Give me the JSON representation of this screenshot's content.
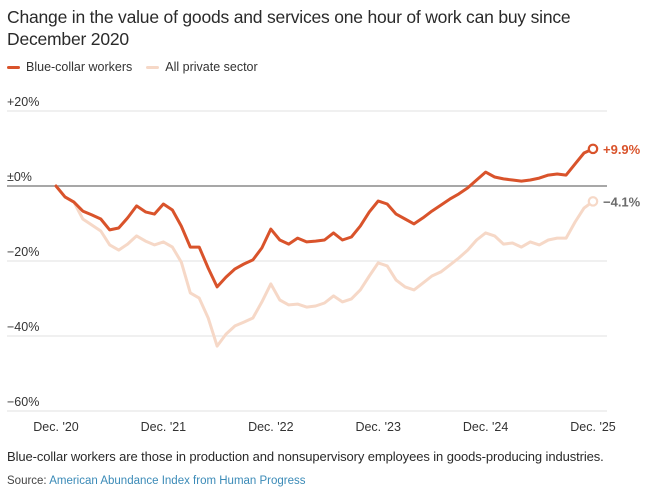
{
  "chart_data": {
    "type": "line",
    "title": "Change in the value of goods and services one hour of work can buy since December 2020",
    "xlabel": "",
    "ylabel": "",
    "ylim": [
      -60,
      20
    ],
    "y_ticks": [
      {
        "value": 20,
        "label": "+20%"
      },
      {
        "value": 0,
        "label": "±0%"
      },
      {
        "value": -20,
        "label": "−20%"
      },
      {
        "value": -40,
        "label": "−40%"
      },
      {
        "value": -60,
        "label": "−60%"
      }
    ],
    "x_range_months": [
      0,
      60
    ],
    "x_ticks": [
      {
        "month": 0,
        "label": "Dec. '20"
      },
      {
        "month": 12,
        "label": "Dec. '21"
      },
      {
        "month": 24,
        "label": "Dec. '22"
      },
      {
        "month": 36,
        "label": "Dec. '23"
      },
      {
        "month": 48,
        "label": "Dec. '24"
      },
      {
        "month": 60,
        "label": "Dec. '25"
      }
    ],
    "grid": true,
    "legend_position": "top-left",
    "series": [
      {
        "name": "Blue-collar workers",
        "color": "#d9532b",
        "end_label": "+9.9%",
        "label_color": "#d9532b",
        "values": [
          0,
          -2.9,
          -4.3,
          -6.7,
          -7.7,
          -8.8,
          -11.7,
          -11.2,
          -8.5,
          -5.3,
          -6.9,
          -7.5,
          -4.8,
          -6.4,
          -10.7,
          -16.3,
          -16.3,
          -21.9,
          -26.9,
          -24.3,
          -22.1,
          -20.8,
          -19.7,
          -16.5,
          -11.5,
          -14.4,
          -15.5,
          -13.9,
          -14.9,
          -14.7,
          -14.4,
          -12.5,
          -14.4,
          -13.6,
          -10.7,
          -6.9,
          -4.0,
          -4.8,
          -7.5,
          -8.8,
          -10.1,
          -8.5,
          -6.7,
          -5.1,
          -3.5,
          -2.1,
          -0.5,
          1.6,
          3.7,
          2.4,
          1.9,
          1.6,
          1.3,
          1.6,
          2.1,
          2.9,
          3.2,
          2.9,
          5.9,
          8.8,
          9.9
        ]
      },
      {
        "name": "All private sector",
        "color": "#f6d8c7",
        "end_label": "−4.1%",
        "label_color": "#6b6b6b",
        "values": [
          0,
          -2.9,
          -4.3,
          -8.8,
          -10.4,
          -12.0,
          -15.7,
          -17.1,
          -15.5,
          -13.3,
          -14.7,
          -15.7,
          -14.9,
          -16.3,
          -20.3,
          -28.5,
          -29.9,
          -35.2,
          -42.7,
          -39.5,
          -37.3,
          -36.3,
          -35.2,
          -30.9,
          -26.1,
          -30.4,
          -31.7,
          -31.5,
          -32.3,
          -32.0,
          -31.2,
          -29.3,
          -30.9,
          -30.1,
          -27.7,
          -24.0,
          -20.5,
          -21.3,
          -25.1,
          -26.9,
          -27.7,
          -25.9,
          -24.0,
          -22.9,
          -21.1,
          -19.2,
          -17.1,
          -14.4,
          -12.5,
          -13.3,
          -15.5,
          -15.2,
          -16.3,
          -14.9,
          -15.7,
          -14.4,
          -13.9,
          -13.9,
          -9.6,
          -5.9,
          -4.1
        ]
      }
    ],
    "note": "Blue-collar workers are those in production and nonsupervisory employees in goods-producing industries.",
    "source_prefix": "Source: ",
    "source_link": "American Abundance Index from Human Progress",
    "source_color": "#3a8ab7",
    "zero_line_color": "#8a8a8a",
    "grid_color": "#e2e2e2"
  }
}
